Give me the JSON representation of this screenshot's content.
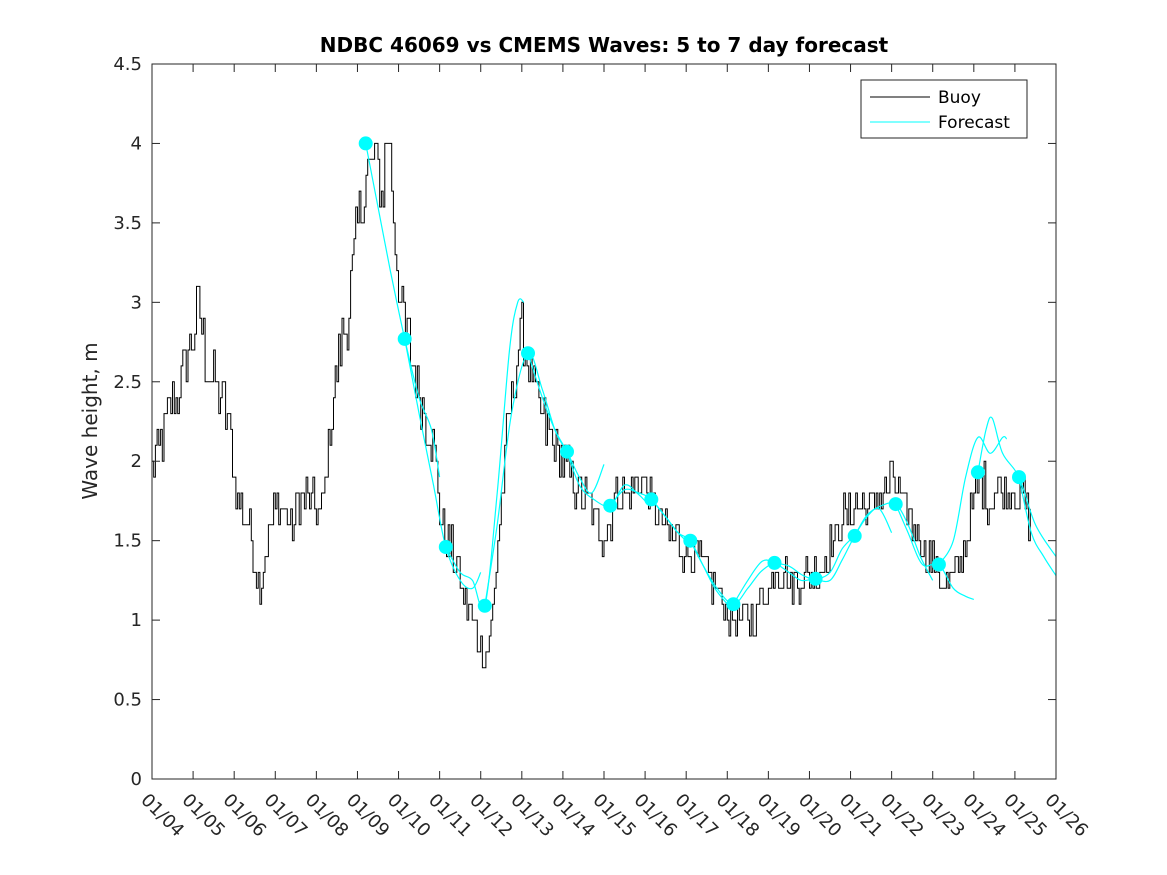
{
  "chart_data": {
    "type": "line",
    "title": "NDBC 46069 vs CMEMS Waves: 5 to 7 day forecast",
    "xlabel": "",
    "ylabel": "Wave height, m",
    "xlim": [
      0,
      22
    ],
    "ylim": [
      0,
      4.5
    ],
    "x_ticks": [
      {
        "value": 0,
        "label": "01/04"
      },
      {
        "value": 1,
        "label": "01/05"
      },
      {
        "value": 2,
        "label": "01/06"
      },
      {
        "value": 3,
        "label": "01/07"
      },
      {
        "value": 4,
        "label": "01/08"
      },
      {
        "value": 5,
        "label": "01/09"
      },
      {
        "value": 6,
        "label": "01/10"
      },
      {
        "value": 7,
        "label": "01/11"
      },
      {
        "value": 8,
        "label": "01/12"
      },
      {
        "value": 9,
        "label": "01/13"
      },
      {
        "value": 10,
        "label": "01/14"
      },
      {
        "value": 11,
        "label": "01/15"
      },
      {
        "value": 12,
        "label": "01/16"
      },
      {
        "value": 13,
        "label": "01/17"
      },
      {
        "value": 14,
        "label": "01/18"
      },
      {
        "value": 15,
        "label": "01/19"
      },
      {
        "value": 16,
        "label": "01/20"
      },
      {
        "value": 17,
        "label": "01/21"
      },
      {
        "value": 18,
        "label": "01/22"
      },
      {
        "value": 19,
        "label": "01/23"
      },
      {
        "value": 20,
        "label": "01/24"
      },
      {
        "value": 21,
        "label": "01/25"
      },
      {
        "value": 22,
        "label": "01/26"
      }
    ],
    "y_ticks": [
      {
        "value": 0,
        "label": "0"
      },
      {
        "value": 0.5,
        "label": "0.5"
      },
      {
        "value": 1,
        "label": "1"
      },
      {
        "value": 1.5,
        "label": "1.5"
      },
      {
        "value": 2,
        "label": "2"
      },
      {
        "value": 2.5,
        "label": "2.5"
      },
      {
        "value": 3,
        "label": "3"
      },
      {
        "value": 3.5,
        "label": "3.5"
      },
      {
        "value": 4,
        "label": "4"
      },
      {
        "value": 4.5,
        "label": "4.5"
      }
    ],
    "legend": {
      "position": "top-right",
      "entries": [
        {
          "name": "Buoy",
          "color": "#000000"
        },
        {
          "name": "Forecast",
          "color": "#00ffff"
        }
      ]
    },
    "buoy_keypoints": [
      [
        0,
        1.95
      ],
      [
        0.2,
        2.1
      ],
      [
        0.4,
        2.3
      ],
      [
        0.6,
        2.4
      ],
      [
        0.8,
        2.6
      ],
      [
        1.0,
        2.8
      ],
      [
        1.15,
        3.0
      ],
      [
        1.3,
        2.6
      ],
      [
        1.5,
        2.5
      ],
      [
        1.7,
        2.4
      ],
      [
        1.9,
        2.2
      ],
      [
        2.05,
        1.75
      ],
      [
        2.2,
        1.7
      ],
      [
        2.35,
        1.65
      ],
      [
        2.5,
        1.4
      ],
      [
        2.65,
        1.2
      ],
      [
        2.8,
        1.5
      ],
      [
        3.0,
        1.7
      ],
      [
        3.2,
        1.75
      ],
      [
        3.4,
        1.55
      ],
      [
        3.6,
        1.8
      ],
      [
        3.8,
        1.75
      ],
      [
        4.0,
        1.7
      ],
      [
        4.1,
        1.6
      ],
      [
        4.25,
        2.0
      ],
      [
        4.45,
        2.5
      ],
      [
        4.6,
        2.7
      ],
      [
        4.8,
        3.0
      ],
      [
        5.0,
        3.5
      ],
      [
        5.2,
        3.8
      ],
      [
        5.4,
        3.9
      ],
      [
        5.6,
        3.7
      ],
      [
        5.75,
        4.1
      ],
      [
        5.9,
        3.5
      ],
      [
        6.05,
        2.95
      ],
      [
        6.2,
        2.8
      ],
      [
        6.4,
        2.55
      ],
      [
        6.6,
        2.35
      ],
      [
        6.85,
        2.1
      ],
      [
        7.0,
        1.7
      ],
      [
        7.15,
        1.5
      ],
      [
        7.3,
        1.45
      ],
      [
        7.45,
        1.3
      ],
      [
        7.6,
        1.1
      ],
      [
        7.75,
        1.05
      ],
      [
        7.9,
        0.9
      ],
      [
        8.05,
        0.8
      ],
      [
        8.15,
        0.75
      ],
      [
        8.3,
        1.1
      ],
      [
        8.5,
        1.8
      ],
      [
        8.7,
        2.3
      ],
      [
        8.85,
        2.6
      ],
      [
        9.0,
        2.8
      ],
      [
        9.2,
        2.6
      ],
      [
        9.4,
        2.3
      ],
      [
        9.6,
        2.2
      ],
      [
        9.8,
        2.1
      ],
      [
        10.0,
        2.0
      ],
      [
        10.2,
        1.9
      ],
      [
        10.4,
        1.8
      ],
      [
        10.6,
        1.75
      ],
      [
        10.8,
        1.6
      ],
      [
        11.0,
        1.55
      ],
      [
        11.2,
        1.7
      ],
      [
        11.4,
        1.8
      ],
      [
        11.6,
        1.75
      ],
      [
        11.8,
        1.9
      ],
      [
        12.0,
        1.85
      ],
      [
        12.2,
        1.7
      ],
      [
        12.4,
        1.6
      ],
      [
        12.6,
        1.55
      ],
      [
        12.8,
        1.5
      ],
      [
        13.0,
        1.45
      ],
      [
        13.2,
        1.4
      ],
      [
        13.4,
        1.35
      ],
      [
        13.6,
        1.25
      ],
      [
        13.8,
        1.15
      ],
      [
        14.0,
        1.05
      ],
      [
        14.2,
        0.95
      ],
      [
        14.4,
        1.0
      ],
      [
        14.6,
        1.0
      ],
      [
        14.8,
        1.1
      ],
      [
        15.0,
        1.2
      ],
      [
        15.2,
        1.35
      ],
      [
        15.4,
        1.3
      ],
      [
        15.6,
        1.2
      ],
      [
        15.8,
        1.25
      ],
      [
        16.0,
        1.3
      ],
      [
        16.2,
        1.3
      ],
      [
        16.4,
        1.4
      ],
      [
        16.6,
        1.5
      ],
      [
        16.8,
        1.65
      ],
      [
        17.0,
        1.7
      ],
      [
        17.2,
        1.75
      ],
      [
        17.4,
        1.7
      ],
      [
        17.6,
        1.75
      ],
      [
        17.8,
        1.8
      ],
      [
        18.0,
        1.9
      ],
      [
        18.2,
        1.75
      ],
      [
        18.4,
        1.65
      ],
      [
        18.6,
        1.55
      ],
      [
        18.8,
        1.45
      ],
      [
        19.0,
        1.35
      ],
      [
        19.2,
        1.25
      ],
      [
        19.4,
        1.2
      ],
      [
        19.6,
        1.3
      ],
      [
        19.8,
        1.5
      ],
      [
        20.0,
        1.75
      ],
      [
        20.2,
        1.85
      ],
      [
        20.4,
        1.75
      ],
      [
        20.6,
        1.85
      ],
      [
        20.8,
        1.8
      ],
      [
        21.0,
        1.8
      ],
      [
        21.2,
        1.75
      ],
      [
        21.4,
        1.55
      ]
    ],
    "forecast_markers": [
      {
        "x": 5.2,
        "y": 4.0
      },
      {
        "x": 6.15,
        "y": 2.77
      },
      {
        "x": 7.15,
        "y": 1.46
      },
      {
        "x": 8.1,
        "y": 1.09
      },
      {
        "x": 9.15,
        "y": 2.68
      },
      {
        "x": 10.1,
        "y": 2.06
      },
      {
        "x": 11.15,
        "y": 1.72
      },
      {
        "x": 12.15,
        "y": 1.76
      },
      {
        "x": 13.1,
        "y": 1.5
      },
      {
        "x": 14.15,
        "y": 1.1
      },
      {
        "x": 15.15,
        "y": 1.36
      },
      {
        "x": 16.15,
        "y": 1.26
      },
      {
        "x": 17.1,
        "y": 1.53
      },
      {
        "x": 18.1,
        "y": 1.73
      },
      {
        "x": 19.15,
        "y": 1.35
      },
      {
        "x": 20.1,
        "y": 1.93
      },
      {
        "x": 21.1,
        "y": 1.9
      }
    ],
    "forecast_segments": [
      [
        [
          5.2,
          4.0
        ],
        [
          5.5,
          3.6
        ],
        [
          5.8,
          3.2
        ],
        [
          6.15,
          2.77
        ],
        [
          6.5,
          2.4
        ],
        [
          6.8,
          2.2
        ],
        [
          7.0,
          1.9
        ]
      ],
      [
        [
          6.15,
          2.77
        ],
        [
          6.5,
          2.3
        ],
        [
          6.85,
          1.85
        ],
        [
          7.15,
          1.46
        ],
        [
          7.5,
          1.25
        ],
        [
          7.8,
          1.2
        ],
        [
          8.0,
          1.3
        ]
      ],
      [
        [
          7.15,
          1.46
        ],
        [
          7.5,
          1.3
        ],
        [
          7.8,
          1.25
        ],
        [
          8.1,
          1.09
        ],
        [
          8.4,
          1.8
        ],
        [
          8.7,
          2.7
        ],
        [
          8.9,
          3.0
        ],
        [
          9.05,
          3.0
        ]
      ],
      [
        [
          8.1,
          1.09
        ],
        [
          8.4,
          1.6
        ],
        [
          8.75,
          2.3
        ],
        [
          9.15,
          2.68
        ],
        [
          9.5,
          2.45
        ],
        [
          9.8,
          2.2
        ],
        [
          10.0,
          2.1
        ]
      ],
      [
        [
          9.15,
          2.68
        ],
        [
          9.5,
          2.4
        ],
        [
          9.8,
          2.2
        ],
        [
          10.1,
          2.06
        ],
        [
          10.4,
          1.9
        ],
        [
          10.7,
          1.8
        ],
        [
          11.0,
          1.98
        ]
      ],
      [
        [
          10.1,
          2.06
        ],
        [
          10.4,
          1.85
        ],
        [
          10.75,
          1.76
        ],
        [
          11.15,
          1.72
        ],
        [
          11.5,
          1.85
        ],
        [
          11.8,
          1.8
        ],
        [
          12.0,
          1.75
        ]
      ],
      [
        [
          11.15,
          1.72
        ],
        [
          11.5,
          1.82
        ],
        [
          11.85,
          1.8
        ],
        [
          12.15,
          1.76
        ],
        [
          12.5,
          1.65
        ],
        [
          12.8,
          1.55
        ],
        [
          13.0,
          1.5
        ]
      ],
      [
        [
          12.15,
          1.76
        ],
        [
          12.5,
          1.65
        ],
        [
          12.8,
          1.55
        ],
        [
          13.1,
          1.5
        ],
        [
          13.4,
          1.35
        ],
        [
          13.7,
          1.2
        ],
        [
          14.0,
          1.1
        ]
      ],
      [
        [
          13.1,
          1.5
        ],
        [
          13.4,
          1.35
        ],
        [
          13.75,
          1.2
        ],
        [
          14.15,
          1.1
        ],
        [
          14.5,
          1.2
        ],
        [
          14.8,
          1.3
        ],
        [
          15.1,
          1.36
        ]
      ],
      [
        [
          14.15,
          1.1
        ],
        [
          14.5,
          1.25
        ],
        [
          14.85,
          1.37
        ],
        [
          15.15,
          1.36
        ],
        [
          15.5,
          1.3
        ],
        [
          15.8,
          1.25
        ],
        [
          16.1,
          1.26
        ]
      ],
      [
        [
          15.15,
          1.36
        ],
        [
          15.5,
          1.34
        ],
        [
          15.85,
          1.28
        ],
        [
          16.15,
          1.26
        ],
        [
          16.5,
          1.3
        ],
        [
          16.8,
          1.45
        ],
        [
          17.1,
          1.53
        ]
      ],
      [
        [
          16.15,
          1.26
        ],
        [
          16.5,
          1.25
        ],
        [
          16.8,
          1.38
        ],
        [
          17.1,
          1.53
        ],
        [
          17.4,
          1.65
        ],
        [
          17.7,
          1.7
        ],
        [
          18.0,
          1.55
        ]
      ],
      [
        [
          17.1,
          1.53
        ],
        [
          17.4,
          1.66
        ],
        [
          17.75,
          1.72
        ],
        [
          18.1,
          1.73
        ],
        [
          18.4,
          1.6
        ],
        [
          18.7,
          1.4
        ],
        [
          19.0,
          1.25
        ]
      ],
      [
        [
          18.1,
          1.73
        ],
        [
          18.4,
          1.55
        ],
        [
          18.75,
          1.35
        ],
        [
          19.15,
          1.35
        ],
        [
          19.5,
          1.2
        ],
        [
          19.8,
          1.15
        ],
        [
          20.0,
          1.13
        ]
      ],
      [
        [
          19.15,
          1.35
        ],
        [
          19.5,
          1.5
        ],
        [
          19.8,
          1.9
        ],
        [
          20.1,
          2.15
        ],
        [
          20.4,
          2.05
        ],
        [
          20.7,
          2.15
        ],
        [
          20.8,
          2.14
        ]
      ],
      [
        [
          20.1,
          1.93
        ],
        [
          20.3,
          2.2
        ],
        [
          20.45,
          2.27
        ],
        [
          20.7,
          2.05
        ],
        [
          21.1,
          1.9
        ],
        [
          21.5,
          1.6
        ],
        [
          22.0,
          1.4
        ]
      ],
      [
        [
          21.1,
          1.9
        ],
        [
          21.4,
          1.55
        ],
        [
          21.7,
          1.4
        ],
        [
          22.0,
          1.28
        ]
      ]
    ]
  }
}
